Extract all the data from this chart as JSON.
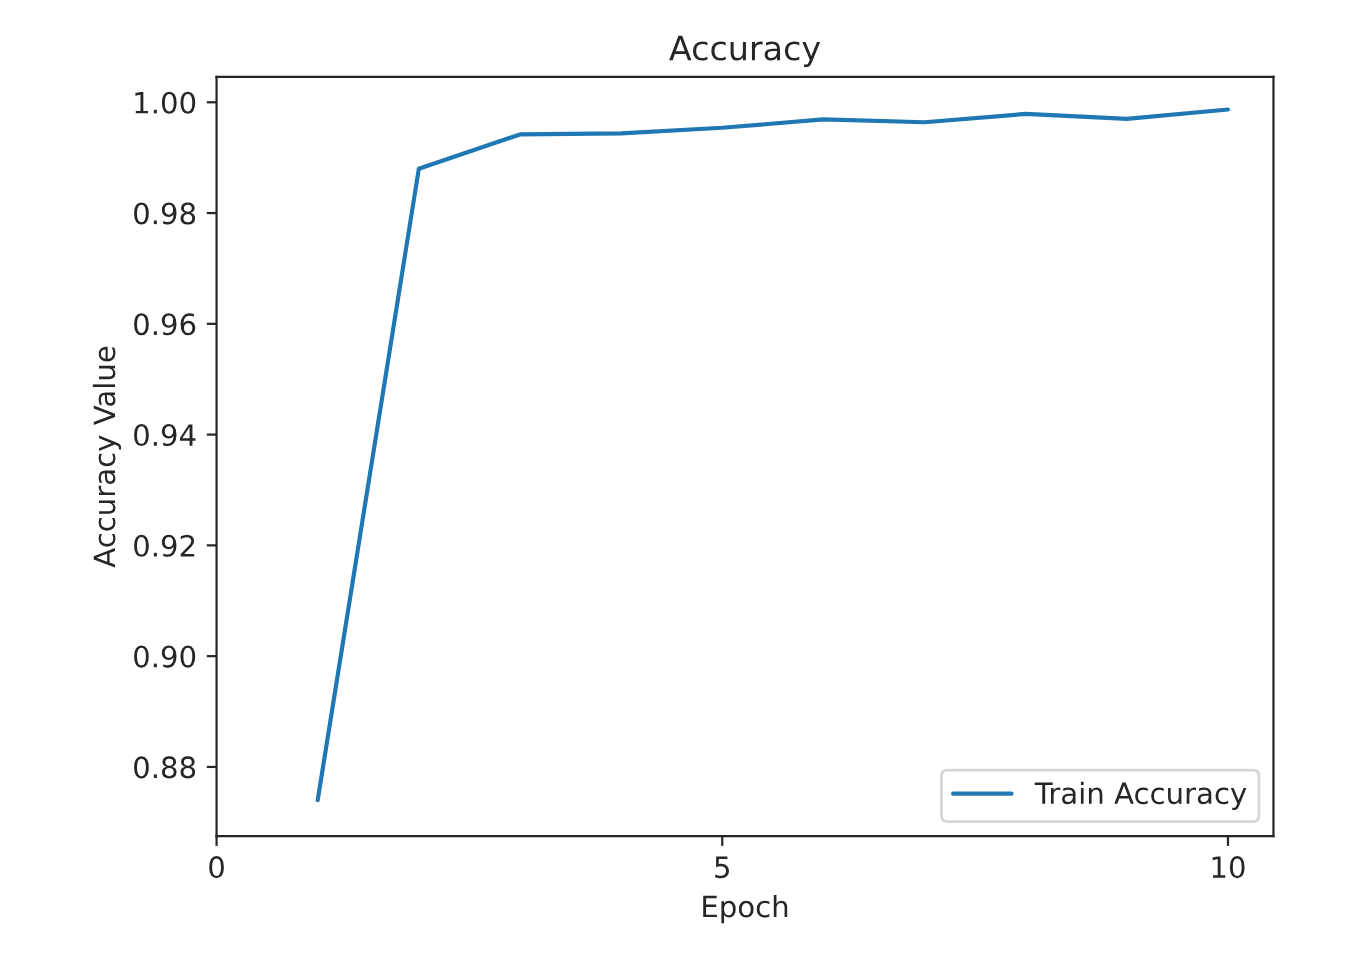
{
  "chart_data": {
    "type": "line",
    "title": "Accuracy",
    "xlabel": "Epoch",
    "ylabel": "Accuracy Value",
    "x": [
      1,
      2,
      3,
      4,
      5,
      6,
      7,
      8,
      9,
      10
    ],
    "series": [
      {
        "name": "Train Accuracy",
        "color": "#1f77b4",
        "values": [
          0.874,
          0.988,
          0.9942,
          0.9944,
          0.9954,
          0.9969,
          0.9964,
          0.9979,
          0.997,
          0.9987
        ]
      }
    ],
    "xlim": [
      0,
      10.45
    ],
    "xticks": [
      0,
      5,
      10
    ],
    "ylim": [
      0.8675,
      1.0046
    ],
    "yticks": [
      {
        "value": 0.88,
        "label": "0.88"
      },
      {
        "value": 0.9,
        "label": "0.90"
      },
      {
        "value": 0.92,
        "label": "0.92"
      },
      {
        "value": 0.94,
        "label": "0.94"
      },
      {
        "value": 0.96,
        "label": "0.96"
      },
      {
        "value": 0.98,
        "label": "0.98"
      },
      {
        "value": 1.0,
        "label": "1.00"
      }
    ],
    "legend": "lower right",
    "grid": false
  }
}
